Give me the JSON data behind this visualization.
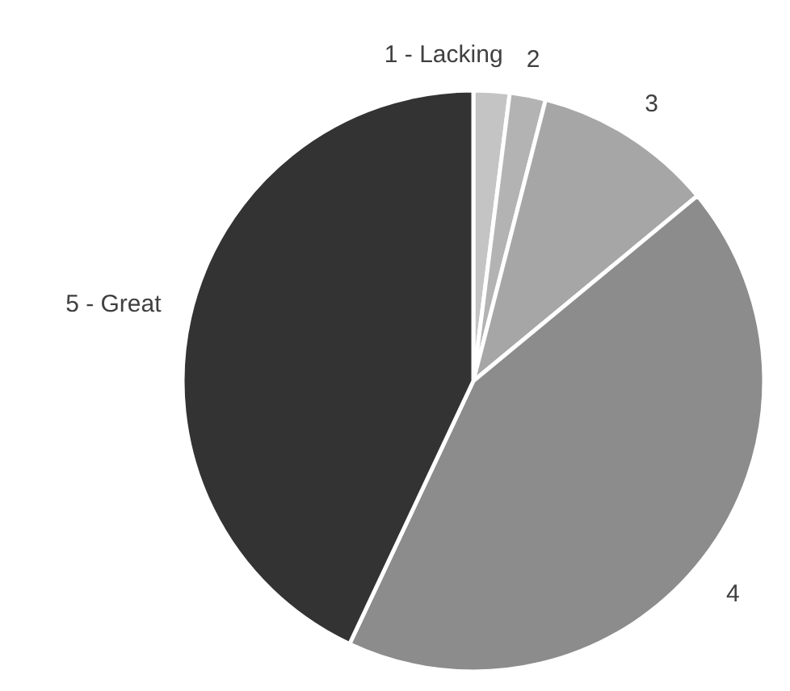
{
  "chart_data": {
    "type": "pie",
    "categories": [
      "1 - Lacking",
      "2",
      "3",
      "4",
      "5 - Great"
    ],
    "values": [
      2,
      2,
      10,
      43,
      43
    ],
    "colors": [
      "#c4c4c4",
      "#b3b3b3",
      "#a6a6a6",
      "#8c8c8c",
      "#333333"
    ]
  }
}
